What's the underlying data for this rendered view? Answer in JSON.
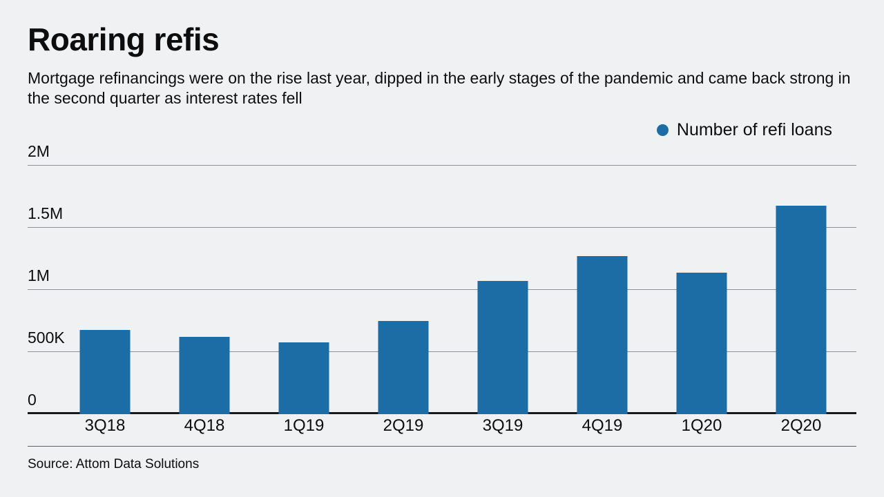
{
  "header": {
    "title": "Roaring refis",
    "subtitle": "Mortgage refinancings were on the rise last year, dipped in the early stages of the pandemic and came back strong in the second quarter as interest rates fell"
  },
  "legend": {
    "label": "Number of refi loans",
    "marker_color": "#1c6ca6"
  },
  "chart_data": {
    "type": "bar",
    "categories": [
      "3Q18",
      "4Q18",
      "1Q19",
      "2Q19",
      "3Q19",
      "4Q19",
      "1Q20",
      "2Q20"
    ],
    "values": [
      680000,
      620000,
      580000,
      750000,
      1070000,
      1270000,
      1140000,
      1680000
    ],
    "series_name": "Number of refi loans",
    "title": "Roaring refis",
    "xlabel": "",
    "ylabel": "",
    "ylim": [
      0,
      2000000
    ],
    "yticks": [
      {
        "value": 0,
        "label": "0"
      },
      {
        "value": 500000,
        "label": "500K"
      },
      {
        "value": 1000000,
        "label": "1M"
      },
      {
        "value": 1500000,
        "label": "1.5M"
      },
      {
        "value": 2000000,
        "label": "2M"
      }
    ],
    "bar_color": "#1c6ca6",
    "grid": true,
    "legend_position": "top-right"
  },
  "footer": {
    "source": "Source: Attom Data Solutions"
  },
  "colors": {
    "background": "#f0f1f2",
    "bar": "#1c6ca6",
    "gridline": "#8d9194",
    "axis": "#17191b"
  }
}
